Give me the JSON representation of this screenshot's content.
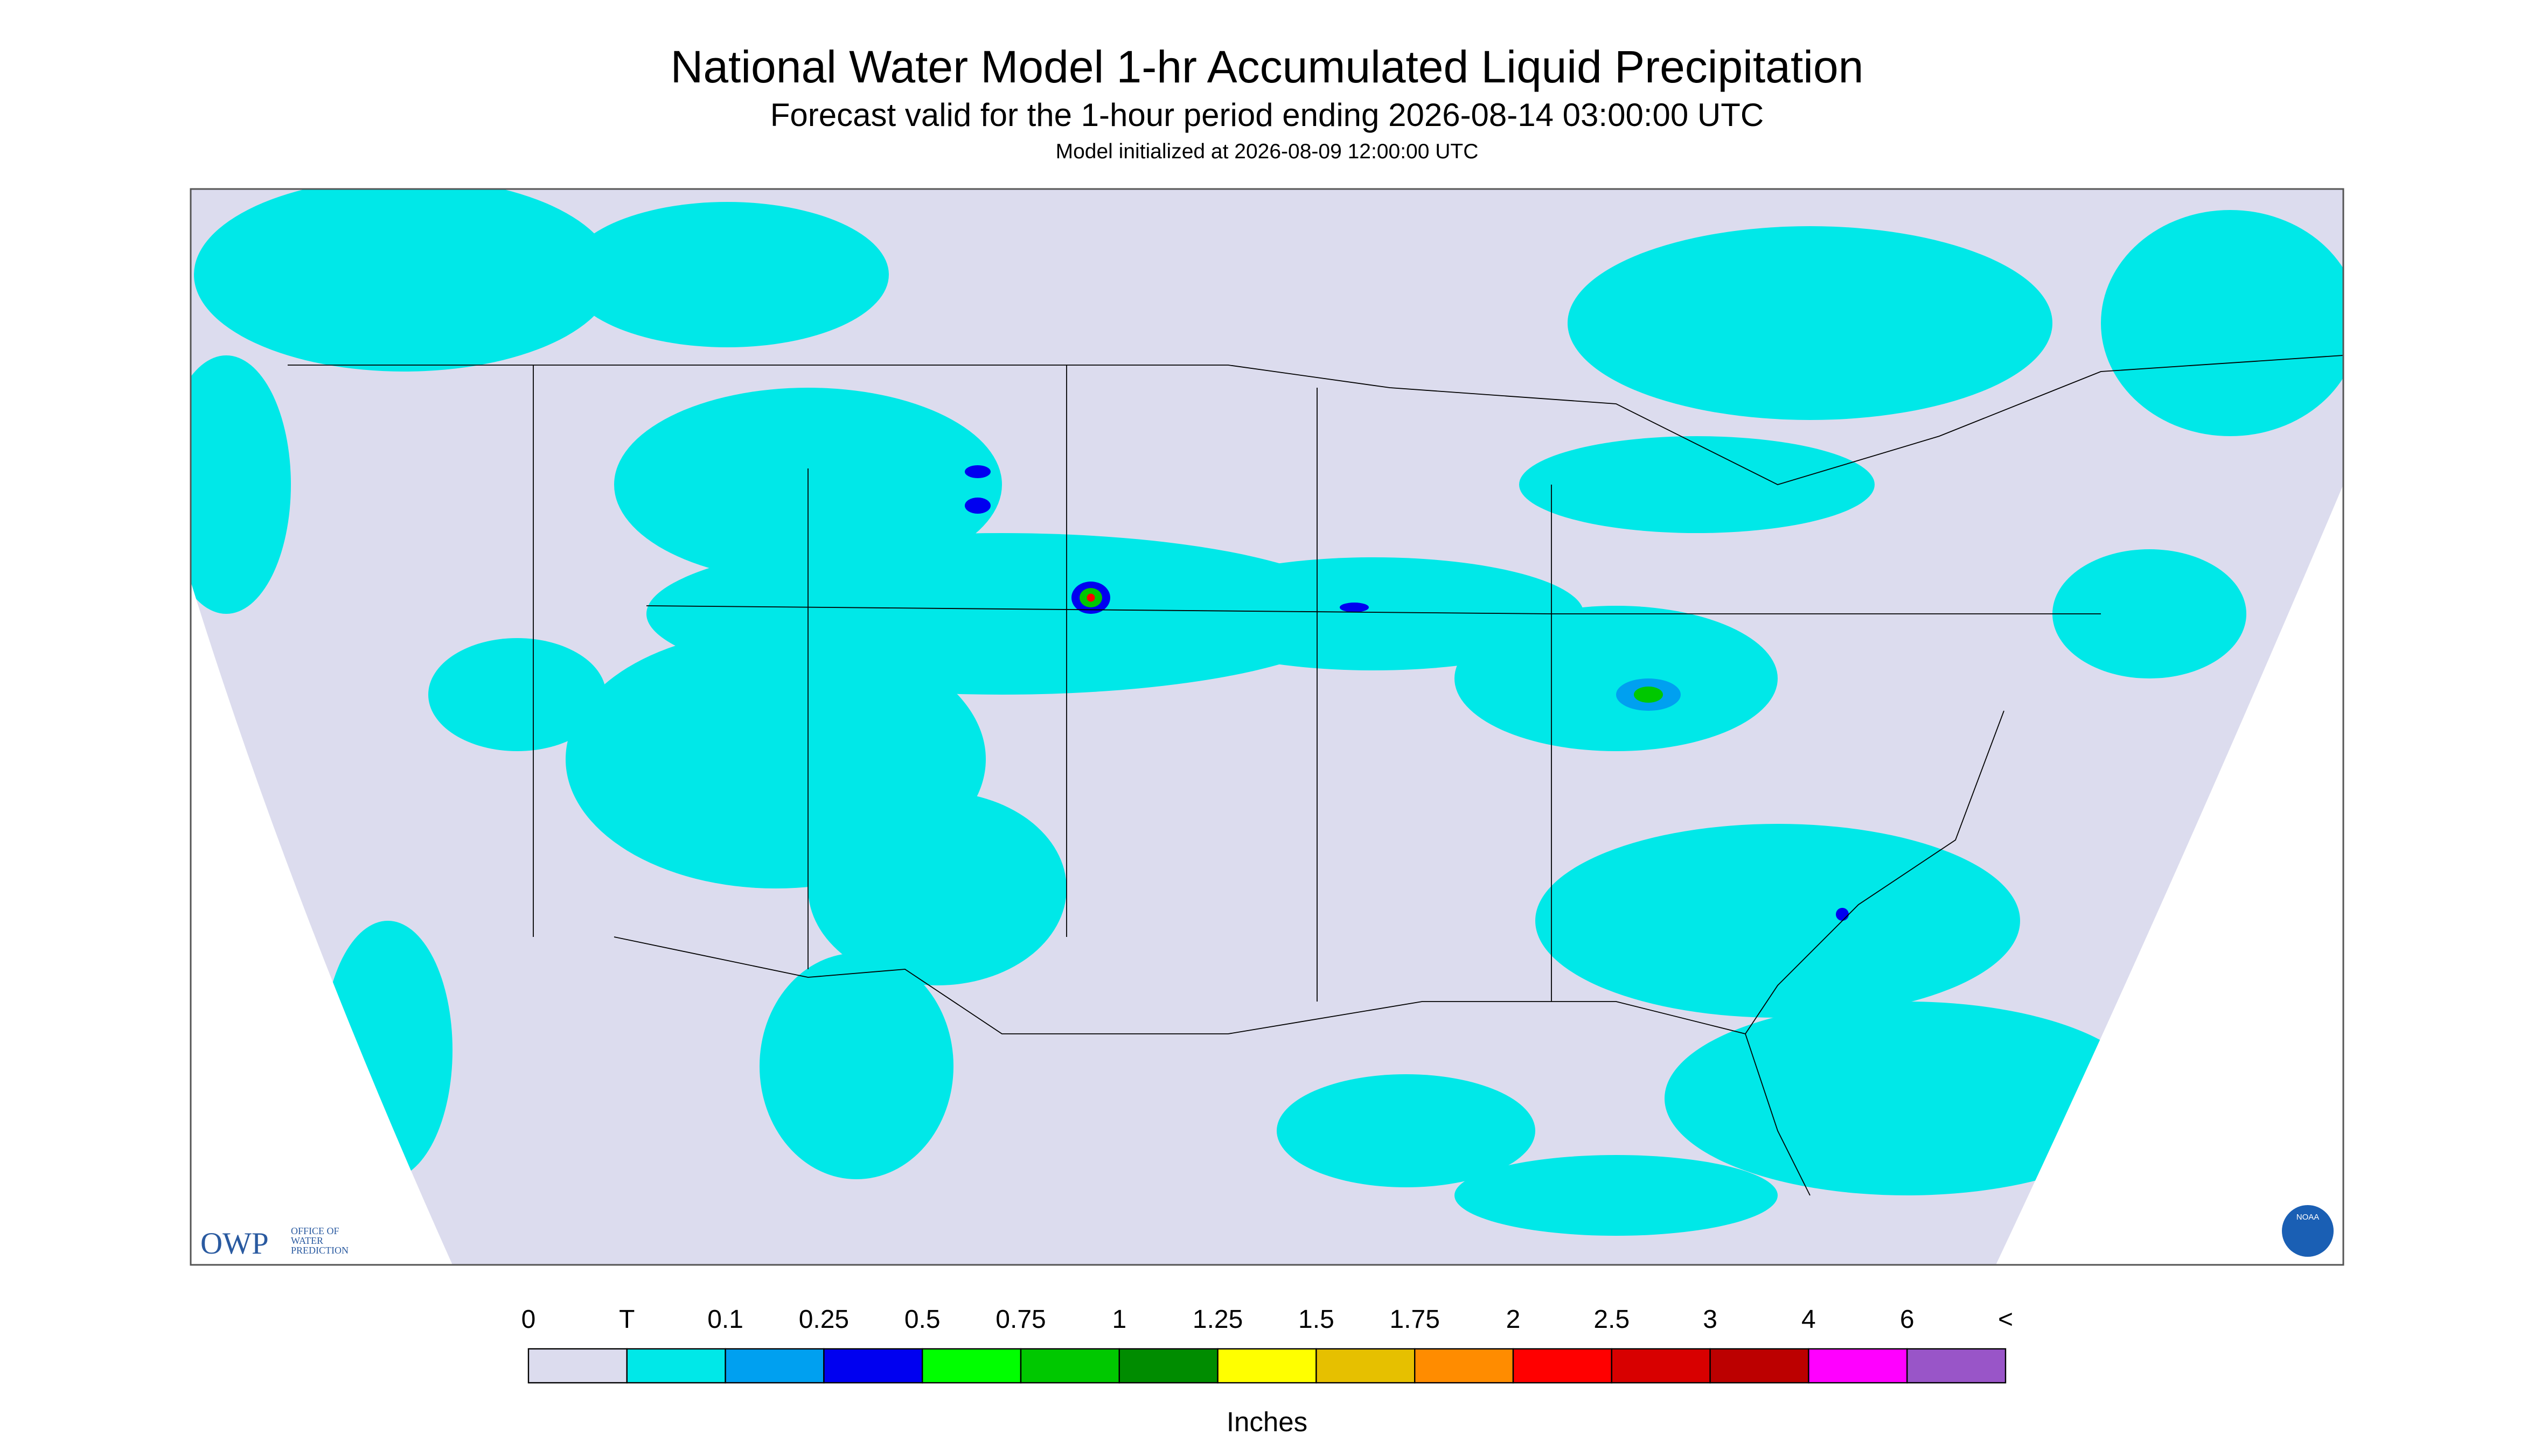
{
  "header": {
    "title": "National Water Model 1-hr Accumulated Liquid Precipitation",
    "subtitle": "Forecast valid for the 1-hour period ending 2026-08-14 03:00:00 UTC",
    "note": "Model initialized at 2026-08-09 12:00:00 UTC"
  },
  "logo": {
    "abbr": "OWP",
    "line1": "OFFICE OF",
    "line2": "WATER",
    "line3": "PREDICTION",
    "agency": "NOAA"
  },
  "legend": {
    "labels": [
      "0",
      "T",
      "0.1",
      "0.25",
      "0.5",
      "0.75",
      "1",
      "1.25",
      "1.5",
      "1.75",
      "2",
      "2.5",
      "3",
      "4",
      "6",
      "<"
    ],
    "colors": [
      "#dcdcee",
      "#00e8e8",
      "#00a0f0",
      "#0000f0",
      "#00ff00",
      "#00c800",
      "#008c00",
      "#ffff00",
      "#e6c000",
      "#ff8c00",
      "#ff0000",
      "#d80000",
      "#bc0000",
      "#ff00ff",
      "#9955c8"
    ],
    "unit": "Inches"
  }
}
